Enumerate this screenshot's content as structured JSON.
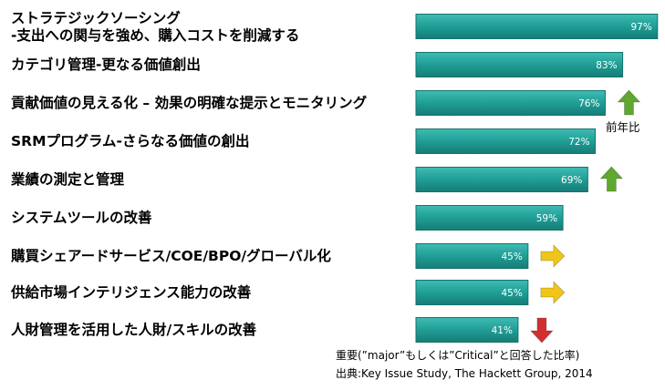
{
  "chart_data": {
    "type": "bar",
    "orientation": "horizontal",
    "categories": [
      "ストラテジックソーシング\n-支出への関与を強め、購入コストを削減する",
      "カテゴリ管理-更なる価値創出",
      "貢献価値の見える化 – 効果の明確な提示とモニタリング",
      "SRMプログラム-さらなる価値の創出",
      "業績の測定と管理",
      "システムツールの改善",
      "購買シェアードサービス/COE/BPO/グローバル化",
      "供給市場インテリジェンス能力の改善",
      "人財管理を活用した人財/スキルの改善"
    ],
    "values": [
      97,
      83,
      76,
      72,
      69,
      59,
      45,
      45,
      41
    ],
    "value_labels": [
      "97%",
      "83%",
      "76%",
      "72%",
      "69%",
      "59%",
      "45%",
      "45%",
      "41%"
    ],
    "trend": [
      "",
      "",
      "up",
      "",
      "up",
      "",
      "flat",
      "flat",
      "down"
    ],
    "xlim": [
      0,
      100
    ],
    "bar_color": "#1f9e96",
    "trend_colors": {
      "up": "#5fa72f",
      "flat": "#f0c419",
      "down": "#d32f2f"
    },
    "annotation_trend": "前年比",
    "footnotes": [
      "重要(”major”もしくは”Critical”と回答した比率)",
      "出典:Key Issue Study, The Hackett Group, 2014"
    ]
  }
}
